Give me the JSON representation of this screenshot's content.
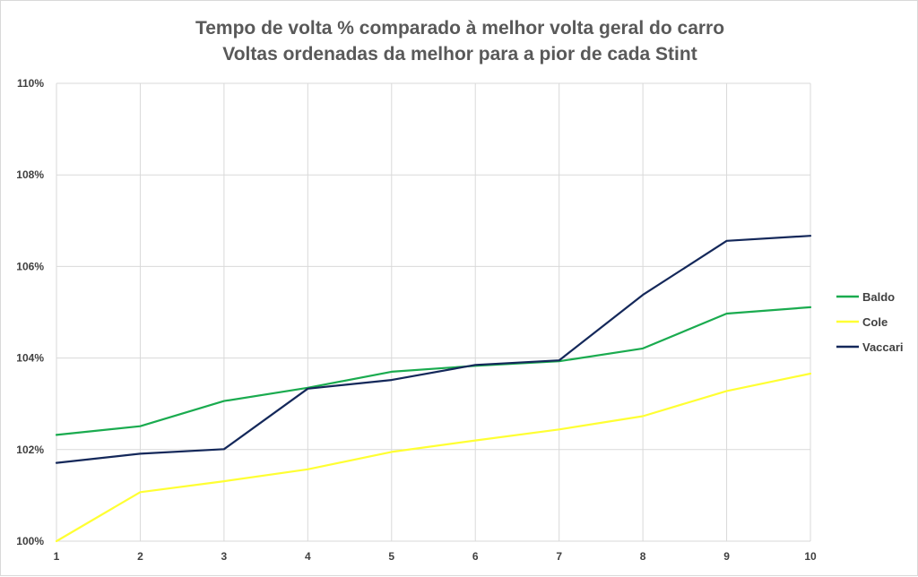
{
  "chart_data": {
    "type": "line",
    "title_line1": "Tempo de volta % comparado à melhor volta geral do carro",
    "title_line2": "Voltas ordenadas da melhor para a pior de cada Stint",
    "xlabel": "",
    "ylabel": "",
    "x": [
      1,
      2,
      3,
      4,
      5,
      6,
      7,
      8,
      9,
      10
    ],
    "x_tick_labels": [
      "1",
      "2",
      "3",
      "4",
      "5",
      "6",
      "7",
      "8",
      "9",
      "10"
    ],
    "ylim": [
      100,
      110
    ],
    "y_ticks": [
      100,
      102,
      104,
      106,
      108,
      110
    ],
    "y_tick_labels": [
      "100%",
      "102%",
      "104%",
      "106%",
      "108%",
      "110%"
    ],
    "grid": true,
    "legend_position": "right",
    "series": [
      {
        "name": "Baldo",
        "color": "#1aab4f",
        "values": [
          102.32,
          102.51,
          103.06,
          103.35,
          103.7,
          103.83,
          103.93,
          104.21,
          104.97,
          105.11
        ]
      },
      {
        "name": "Cole",
        "color": "#ffff33",
        "values": [
          100.0,
          101.07,
          101.31,
          101.57,
          101.95,
          102.2,
          102.44,
          102.73,
          103.28,
          103.66
        ]
      },
      {
        "name": "Vaccari",
        "color": "#14285a",
        "values": [
          101.71,
          101.91,
          102.01,
          103.33,
          103.52,
          103.85,
          103.95,
          105.38,
          106.56,
          106.67
        ]
      }
    ]
  }
}
